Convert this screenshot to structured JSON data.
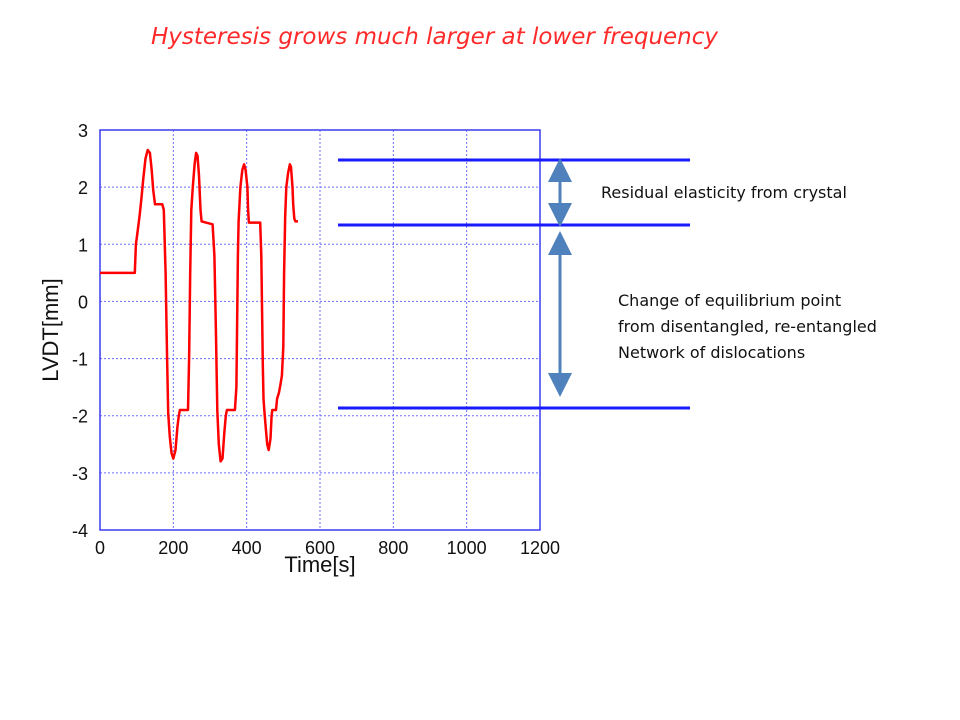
{
  "slide": {
    "title": "Hysteresis grows much larger at lower frequency",
    "annotation_residual": "Residual elasticity from crystal",
    "annotation_equilibrium": [
      "Change of equilibrium point",
      "from disentangled, re-entangled",
      "Network of dislocations"
    ]
  },
  "colors": {
    "title": "#ff2a2a",
    "series": "#ff0000",
    "marker_lines": "#1a1aff",
    "arrows": "#4f81bd",
    "axes": "#3a3af0",
    "grid": "#6b6bff"
  },
  "chart_data": {
    "type": "line",
    "xlabel": "Time[s]",
    "ylabel": "LVDT[mm]",
    "xlim": [
      0,
      1200
    ],
    "ylim": [
      -4,
      3
    ],
    "x_ticks": [
      "0",
      "200",
      "400",
      "600",
      "800",
      "1000",
      "1200"
    ],
    "y_ticks": [
      "3",
      "2",
      "1",
      "0",
      "-1",
      "-2",
      "-3",
      "-4"
    ],
    "grid": true,
    "series": [
      {
        "points": [
          [
            0,
            0.5
          ],
          [
            95,
            0.5
          ],
          [
            98,
            1.0
          ],
          [
            103,
            1.25
          ],
          [
            108,
            1.5
          ],
          [
            113,
            1.8
          ],
          [
            118,
            2.15
          ],
          [
            124,
            2.5
          ],
          [
            130,
            2.65
          ],
          [
            136,
            2.6
          ],
          [
            141,
            2.3
          ],
          [
            145,
            1.95
          ],
          [
            148,
            1.8
          ],
          [
            150,
            1.7
          ],
          [
            170,
            1.7
          ],
          [
            174,
            1.6
          ],
          [
            179,
            0.5
          ],
          [
            183,
            -1.0
          ],
          [
            186,
            -1.95
          ],
          [
            190,
            -2.35
          ],
          [
            195,
            -2.65
          ],
          [
            200,
            -2.75
          ],
          [
            206,
            -2.6
          ],
          [
            211,
            -2.2
          ],
          [
            215,
            -2.0
          ],
          [
            218,
            -1.9
          ],
          [
            240,
            -1.9
          ],
          [
            243,
            -1.0
          ],
          [
            246,
            0.5
          ],
          [
            249,
            1.6
          ],
          [
            253,
            2.0
          ],
          [
            258,
            2.4
          ],
          [
            262,
            2.6
          ],
          [
            266,
            2.55
          ],
          [
            270,
            2.2
          ],
          [
            274,
            1.6
          ],
          [
            277,
            1.4
          ],
          [
            307,
            1.35
          ],
          [
            312,
            0.8
          ],
          [
            316,
            -0.5
          ],
          [
            320,
            -1.9
          ],
          [
            324,
            -2.5
          ],
          [
            329,
            -2.8
          ],
          [
            334,
            -2.75
          ],
          [
            339,
            -2.3
          ],
          [
            343,
            -2.0
          ],
          [
            346,
            -1.9
          ],
          [
            368,
            -1.9
          ],
          [
            372,
            -1.5
          ],
          [
            376,
            0.8
          ],
          [
            378,
            1.4
          ],
          [
            383,
            2.0
          ],
          [
            388,
            2.3
          ],
          [
            393,
            2.4
          ],
          [
            397,
            2.3
          ],
          [
            402,
            2.0
          ],
          [
            404,
            1.6
          ],
          [
            406,
            1.38
          ],
          [
            437,
            1.38
          ],
          [
            440,
            0.8
          ],
          [
            442,
            -0.2
          ],
          [
            444,
            -1.1
          ],
          [
            446,
            -1.7
          ],
          [
            448,
            -1.9
          ],
          [
            452,
            -2.2
          ],
          [
            456,
            -2.5
          ],
          [
            460,
            -2.6
          ],
          [
            465,
            -2.4
          ],
          [
            468,
            -2.0
          ],
          [
            470,
            -1.9
          ],
          [
            480,
            -1.9
          ],
          [
            483,
            -1.7
          ],
          [
            488,
            -1.6
          ],
          [
            491,
            -1.5
          ],
          [
            496,
            -1.3
          ],
          [
            500,
            -0.8
          ],
          [
            502,
            0.5
          ],
          [
            505,
            1.5
          ],
          [
            508,
            2.0
          ],
          [
            513,
            2.25
          ],
          [
            518,
            2.4
          ],
          [
            521,
            2.35
          ],
          [
            525,
            2.0
          ],
          [
            527,
            1.7
          ],
          [
            530,
            1.45
          ],
          [
            533,
            1.4
          ],
          [
            540,
            1.4
          ]
        ]
      }
    ]
  }
}
